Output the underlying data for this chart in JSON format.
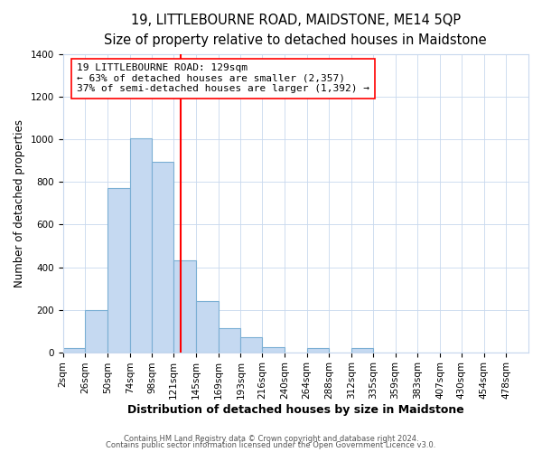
{
  "title": "19, LITTLEBOURNE ROAD, MAIDSTONE, ME14 5QP",
  "subtitle": "Size of property relative to detached houses in Maidstone",
  "xlabel": "Distribution of detached houses by size in Maidstone",
  "ylabel": "Number of detached properties",
  "bar_labels": [
    "2sqm",
    "26sqm",
    "50sqm",
    "74sqm",
    "98sqm",
    "121sqm",
    "145sqm",
    "169sqm",
    "193sqm",
    "216sqm",
    "240sqm",
    "264sqm",
    "288sqm",
    "312sqm",
    "335sqm",
    "359sqm",
    "383sqm",
    "407sqm",
    "430sqm",
    "454sqm",
    "478sqm"
  ],
  "bar_heights": [
    20,
    200,
    770,
    1005,
    895,
    430,
    240,
    115,
    70,
    22,
    0,
    20,
    0,
    18,
    0,
    0,
    0,
    0,
    0,
    0,
    0
  ],
  "bar_edges": [
    2,
    26,
    50,
    74,
    98,
    121,
    145,
    169,
    193,
    216,
    240,
    264,
    288,
    312,
    335,
    359,
    383,
    407,
    430,
    454,
    478,
    502
  ],
  "bar_color": "#C5D9F1",
  "bar_edge_color": "#7BAFD4",
  "vline_x": 129,
  "vline_color": "red",
  "annotation_title": "19 LITTLEBOURNE ROAD: 129sqm",
  "annotation_line1": "← 63% of detached houses are smaller (2,357)",
  "annotation_line2": "37% of semi-detached houses are larger (1,392) →",
  "annotation_box_color": "white",
  "annotation_box_edge_color": "red",
  "ylim": [
    0,
    1400
  ],
  "yticks": [
    0,
    200,
    400,
    600,
    800,
    1000,
    1200,
    1400
  ],
  "footer1": "Contains HM Land Registry data © Crown copyright and database right 2024.",
  "footer2": "Contains public sector information licensed under the Open Government Licence v3.0.",
  "background_color": "#ffffff",
  "plot_background_color": "#ffffff",
  "grid_color": "#C8D8EE",
  "title_fontsize": 10.5,
  "subtitle_fontsize": 9.5,
  "xlabel_fontsize": 9,
  "ylabel_fontsize": 8.5,
  "annotation_fontsize": 8,
  "tick_fontsize": 7.5,
  "footer_fontsize": 6
}
